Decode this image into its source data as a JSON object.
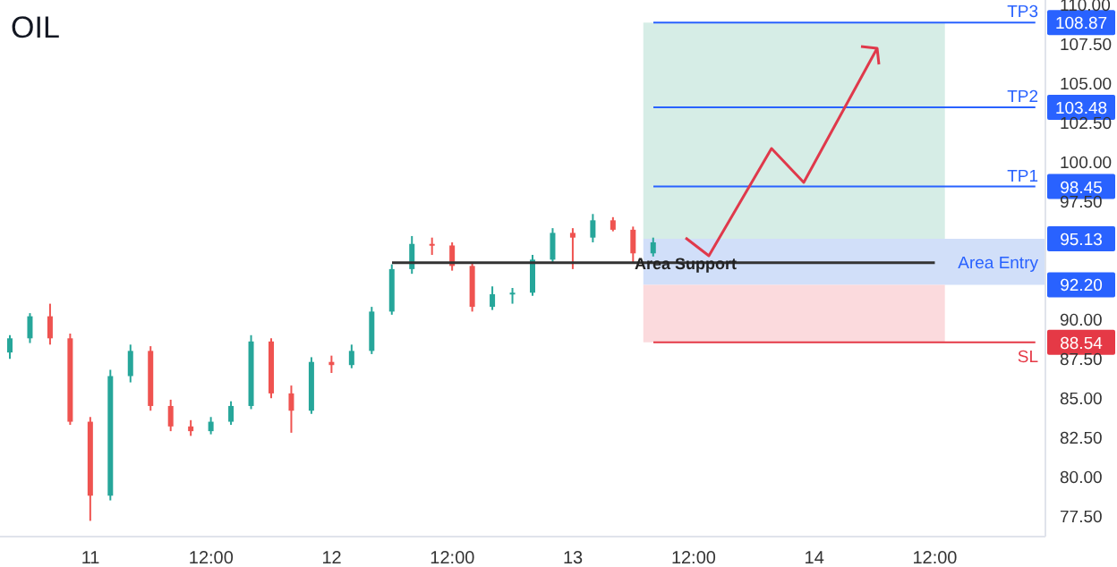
{
  "chart_data": {
    "type": "candlestick",
    "title": "OIL",
    "categories": [
      null,
      null,
      null,
      null,
      "11",
      null,
      null,
      null,
      null,
      null,
      "12:00",
      null,
      null,
      null,
      null,
      null,
      "12",
      null,
      null,
      null,
      null,
      null,
      "12:00",
      null,
      null,
      null,
      null,
      null,
      "13",
      null,
      null,
      null,
      null,
      null,
      "12:00",
      null,
      null,
      null,
      null,
      null,
      "14",
      null,
      null,
      null,
      null,
      null,
      "12:00",
      null,
      null,
      null,
      null,
      null
    ],
    "ohlc": [
      [
        87.9,
        89.0,
        87.5,
        88.8
      ],
      [
        88.8,
        90.4,
        88.5,
        90.2
      ],
      [
        90.2,
        91.0,
        88.4,
        88.8
      ],
      [
        88.8,
        89.1,
        83.3,
        83.5
      ],
      [
        83.5,
        83.8,
        77.2,
        78.8
      ],
      [
        78.8,
        86.8,
        78.5,
        86.4
      ],
      [
        86.4,
        88.4,
        86.0,
        88.0
      ],
      [
        88.0,
        88.3,
        84.2,
        84.5
      ],
      [
        84.5,
        84.9,
        82.9,
        83.2
      ],
      [
        83.2,
        83.6,
        82.6,
        82.9
      ],
      [
        82.9,
        83.8,
        82.7,
        83.5
      ],
      [
        83.5,
        84.8,
        83.3,
        84.5
      ],
      [
        84.5,
        89.0,
        84.3,
        88.6
      ],
      [
        88.6,
        88.8,
        85.0,
        85.3
      ],
      [
        85.3,
        85.8,
        82.8,
        84.2
      ],
      [
        84.2,
        87.6,
        84.0,
        87.3
      ],
      [
        87.3,
        87.7,
        86.6,
        87.1
      ],
      [
        87.1,
        88.4,
        86.9,
        88.0
      ],
      [
        88.0,
        90.8,
        87.8,
        90.5
      ],
      [
        90.5,
        93.5,
        90.3,
        93.2
      ],
      [
        93.2,
        95.3,
        92.9,
        94.8
      ],
      [
        94.8,
        95.2,
        94.1,
        94.7
      ],
      [
        94.7,
        94.9,
        93.1,
        93.4
      ],
      [
        93.4,
        93.6,
        90.5,
        90.8
      ],
      [
        90.8,
        92.1,
        90.6,
        91.6
      ],
      [
        91.6,
        92.0,
        91.0,
        91.7
      ],
      [
        91.7,
        94.1,
        91.5,
        93.8
      ],
      [
        93.8,
        95.8,
        93.6,
        95.5
      ],
      [
        95.5,
        95.8,
        93.2,
        95.2
      ],
      [
        95.2,
        96.7,
        94.9,
        96.3
      ],
      [
        96.3,
        96.5,
        95.6,
        95.7
      ],
      [
        95.7,
        95.9,
        93.6,
        94.2
      ],
      [
        94.2,
        95.2,
        94.0,
        94.9
      ],
      null,
      null,
      null,
      null,
      null,
      null,
      null,
      null,
      null,
      null,
      null,
      null,
      null,
      null,
      null,
      null,
      null,
      null,
      null
    ],
    "colors": [
      "#26a69a",
      "#26a69a",
      "#ef5350",
      "#ef5350",
      "#ef5350",
      "#26a69a",
      "#26a69a",
      "#ef5350",
      "#ef5350",
      "#ef5350",
      "#26a69a",
      "#26a69a",
      "#26a69a",
      "#ef5350",
      "#ef5350",
      "#26a69a",
      "#ef5350",
      "#26a69a",
      "#26a69a",
      "#26a69a",
      "#26a69a",
      "#ef5350",
      "#ef5350",
      "#ef5350",
      "#26a69a",
      "#26a69a",
      "#26a69a",
      "#26a69a",
      "#ef5350",
      "#26a69a",
      "#ef5350",
      "#ef5350",
      "#26a69a",
      null,
      null,
      null,
      null,
      null,
      null,
      null,
      null,
      null,
      null,
      null,
      null,
      null,
      null,
      null,
      null,
      null,
      null,
      null
    ],
    "ylim": [
      76.2,
      110.3
    ],
    "yticks": [
      {
        "value": 77.5,
        "label": "77.50"
      },
      {
        "value": 80,
        "label": "80.00"
      },
      {
        "value": 82.5,
        "label": "82.50"
      },
      {
        "value": 85,
        "label": "85.00"
      },
      {
        "value": 87.5,
        "label": "87.50"
      },
      {
        "value": 90,
        "label": "90.00"
      },
      {
        "value": 97.5,
        "label": "97.50"
      },
      {
        "value": 100,
        "label": "100.00"
      },
      {
        "value": 102.5,
        "label": "102.50"
      },
      {
        "value": 105,
        "label": "105.00"
      },
      {
        "value": 107.5,
        "label": "107.50"
      },
      {
        "value": 110,
        "label": "110.00"
      }
    ],
    "bands": [
      {
        "axis": "y",
        "from": 95.13,
        "to": 108.87,
        "label": null,
        "color": "#cfeae2"
      },
      {
        "axis": "y",
        "from": 92.2,
        "to": 95.13,
        "label": "Area Entry",
        "color": "#c9d9f8"
      },
      {
        "axis": "y",
        "from": 88.54,
        "to": 92.2,
        "label": null,
        "color": "#fad3d7"
      }
    ],
    "ref_lines": [
      {
        "axis": "y",
        "value": 108.87,
        "label": "TP3",
        "color": "#2962ff"
      },
      {
        "axis": "y",
        "value": 103.48,
        "label": "TP2",
        "color": "#2962ff"
      },
      {
        "axis": "y",
        "value": 98.45,
        "label": "TP1",
        "color": "#2962ff"
      },
      {
        "axis": "y",
        "value": 93.6,
        "label": "Area Support",
        "color": "#333333"
      },
      {
        "axis": "y",
        "value": 88.54,
        "label": "SL",
        "color": "#e53946"
      }
    ],
    "annotations": [
      {
        "text": "108.87",
        "y": 108.87
      },
      {
        "text": "103.48",
        "y": 103.48
      },
      {
        "text": "98.45",
        "y": 98.45
      },
      {
        "text": "95.13",
        "y": 95.13
      },
      {
        "text": "92.20",
        "y": 92.2
      },
      {
        "text": "88.54",
        "y": 88.54
      }
    ]
  }
}
